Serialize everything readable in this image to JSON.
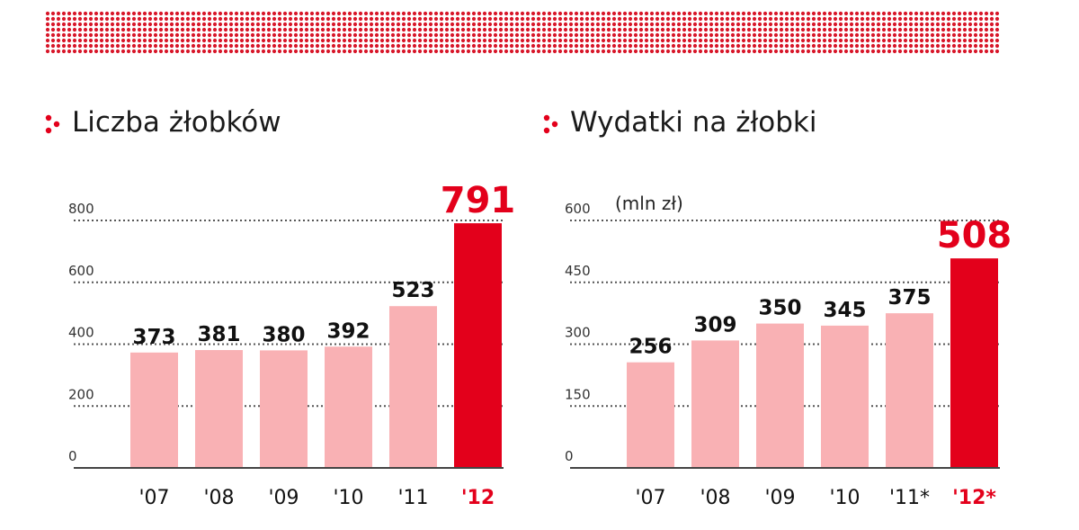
{
  "colors": {
    "bar": "#f9b1b4",
    "highlight": "#e3001b",
    "dots": "#d8172a",
    "grid": "#555555",
    "text": "#111111"
  },
  "chart_data": [
    {
      "type": "bar",
      "title": "Liczba żłobków",
      "categories": [
        "'07",
        "'08",
        "'09",
        "'10",
        "'11",
        "'12"
      ],
      "values": [
        373,
        381,
        380,
        392,
        523,
        791
      ],
      "value_labels": [
        "373",
        "381",
        "380",
        "392",
        "523",
        "791"
      ],
      "highlight_index": 5,
      "yticks": [
        0,
        200,
        400,
        600,
        800
      ],
      "ytick_labels": [
        "0",
        "200",
        "400",
        "600",
        "800"
      ],
      "ylim": [
        0,
        800
      ],
      "grid": true,
      "unit_label": ""
    },
    {
      "type": "bar",
      "title": "Wydatki na żłobki",
      "categories": [
        "'07",
        "'08",
        "'09",
        "'10",
        "'11*",
        "'12*"
      ],
      "values": [
        256,
        309,
        350,
        345,
        375,
        508
      ],
      "value_labels": [
        "256",
        "309",
        "350",
        "345",
        "375",
        "508"
      ],
      "highlight_index": 5,
      "yticks": [
        0,
        150,
        300,
        450,
        600
      ],
      "ytick_labels": [
        "0",
        "150",
        "300",
        "450",
        "600"
      ],
      "ylim": [
        0,
        600
      ],
      "grid": true,
      "unit_label": "(mln zł)"
    }
  ]
}
